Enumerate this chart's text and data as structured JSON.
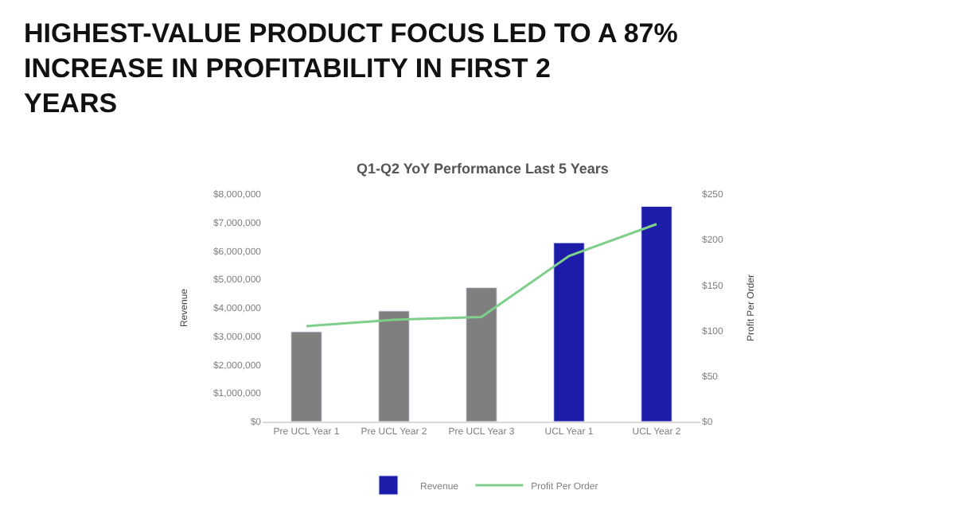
{
  "chart_data": {
    "type": "bar",
    "title": "HIGHEST-VALUE PRODUCT FOCUS LED TO A 87% INCREASE IN PROFITABILITY IN FIRST 2 YEARS",
    "subtitle": "Q1-Q2 YoY Performance Last 5 Years",
    "ylabel": "Revenue",
    "y2label": "Profit Per Order",
    "categories": [
      "Pre UCL Year 1",
      "Pre UCL Year 2",
      "Pre UCL Year 3",
      "UCL Year 1",
      "UCL Year 2"
    ],
    "series": [
      {
        "name": "Revenue",
        "color": "#1c1ca8",
        "colors": [
          "#7f7f7f",
          "#7f7f7f",
          "#7f7f7f",
          "#1c1ca8",
          "#1c1ca8"
        ],
        "values": [
          3160000,
          3890000,
          4710000,
          6290000,
          7570000
        ]
      },
      {
        "name": "Profit Per Order",
        "type": "line",
        "axis": "y2",
        "color": "#7fcf8c",
        "values": [
          105,
          112,
          115,
          182,
          217
        ]
      }
    ],
    "ylim": [
      0,
      8000000
    ],
    "yticks": [
      {
        "value": 0,
        "label": "$0"
      },
      {
        "value": 1000000,
        "label": "$1,000,000"
      },
      {
        "value": 2000000,
        "label": "$2,000,000"
      },
      {
        "value": 3000000,
        "label": "$3,000,000"
      },
      {
        "value": 4000000,
        "label": "$4,000,000"
      },
      {
        "value": 5000000,
        "label": "$5,000,000"
      },
      {
        "value": 6000000,
        "label": "$6,000,000"
      },
      {
        "value": 7000000,
        "label": "$7,000,000"
      },
      {
        "value": 8000000,
        "label": "$8,000,000"
      }
    ],
    "y2lim": [
      0,
      250
    ],
    "y2ticks": [
      {
        "value": 0,
        "label": "$0"
      },
      {
        "value": 50,
        "label": "$50"
      },
      {
        "value": 100,
        "label": "$100"
      },
      {
        "value": 150,
        "label": "$150"
      },
      {
        "value": 200,
        "label": "$200"
      },
      {
        "value": 250,
        "label": "$250"
      }
    ],
    "legend": "bottom",
    "marker": "none",
    "line_style": "solid"
  }
}
